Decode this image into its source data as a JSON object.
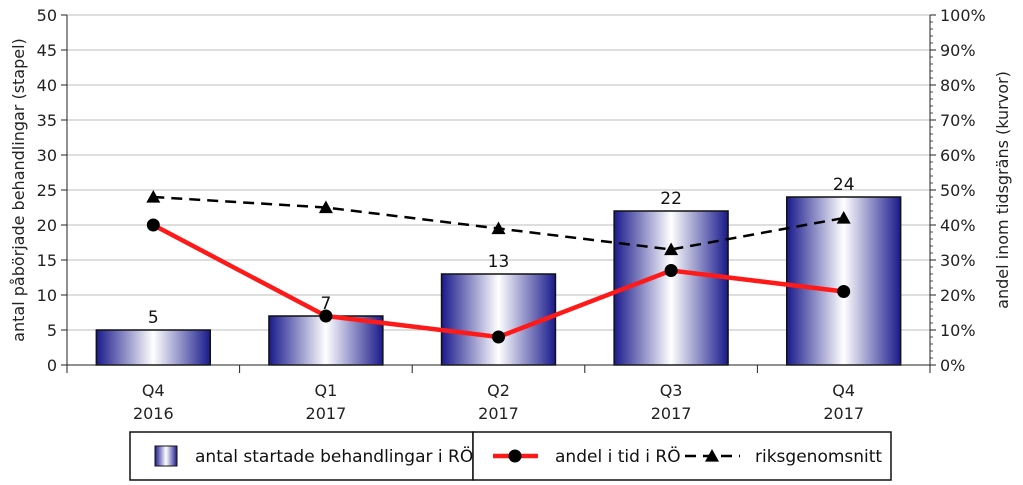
{
  "chart_data": {
    "type": "bar",
    "categories": [
      {
        "quarter": "Q4",
        "year": "2016"
      },
      {
        "quarter": "Q1",
        "year": "2017"
      },
      {
        "quarter": "Q2",
        "year": "2017"
      },
      {
        "quarter": "Q3",
        "year": "2017"
      },
      {
        "quarter": "Q4",
        "year": "2017"
      }
    ],
    "bars": {
      "name": "antal startade behandlingar i RÖ",
      "values": [
        5,
        7,
        13,
        22,
        24
      ],
      "axis": "left",
      "color_dark": "#1a1a8c",
      "color_light": "#ffffff"
    },
    "lines": [
      {
        "name": "andel i tid i RÖ",
        "values": [
          40,
          14,
          8,
          27,
          21
        ],
        "axis": "right",
        "color": "#ff1a1a",
        "marker": "circle",
        "style": "solid"
      },
      {
        "name": "riksgenomsnitt",
        "values": [
          48,
          45,
          39,
          33,
          42
        ],
        "axis": "right",
        "color": "#000000",
        "marker": "triangle",
        "style": "dashed"
      }
    ],
    "y_left": {
      "label": "antal påbörjade behandlingar (stapel)",
      "min": 0,
      "max": 50,
      "step": 5
    },
    "y_right": {
      "label": "andel inom tidsgräns (kurvor)",
      "min": 0,
      "max": 100,
      "step": 10,
      "unit": "%"
    },
    "grid": true,
    "legend_position": "bottom"
  }
}
